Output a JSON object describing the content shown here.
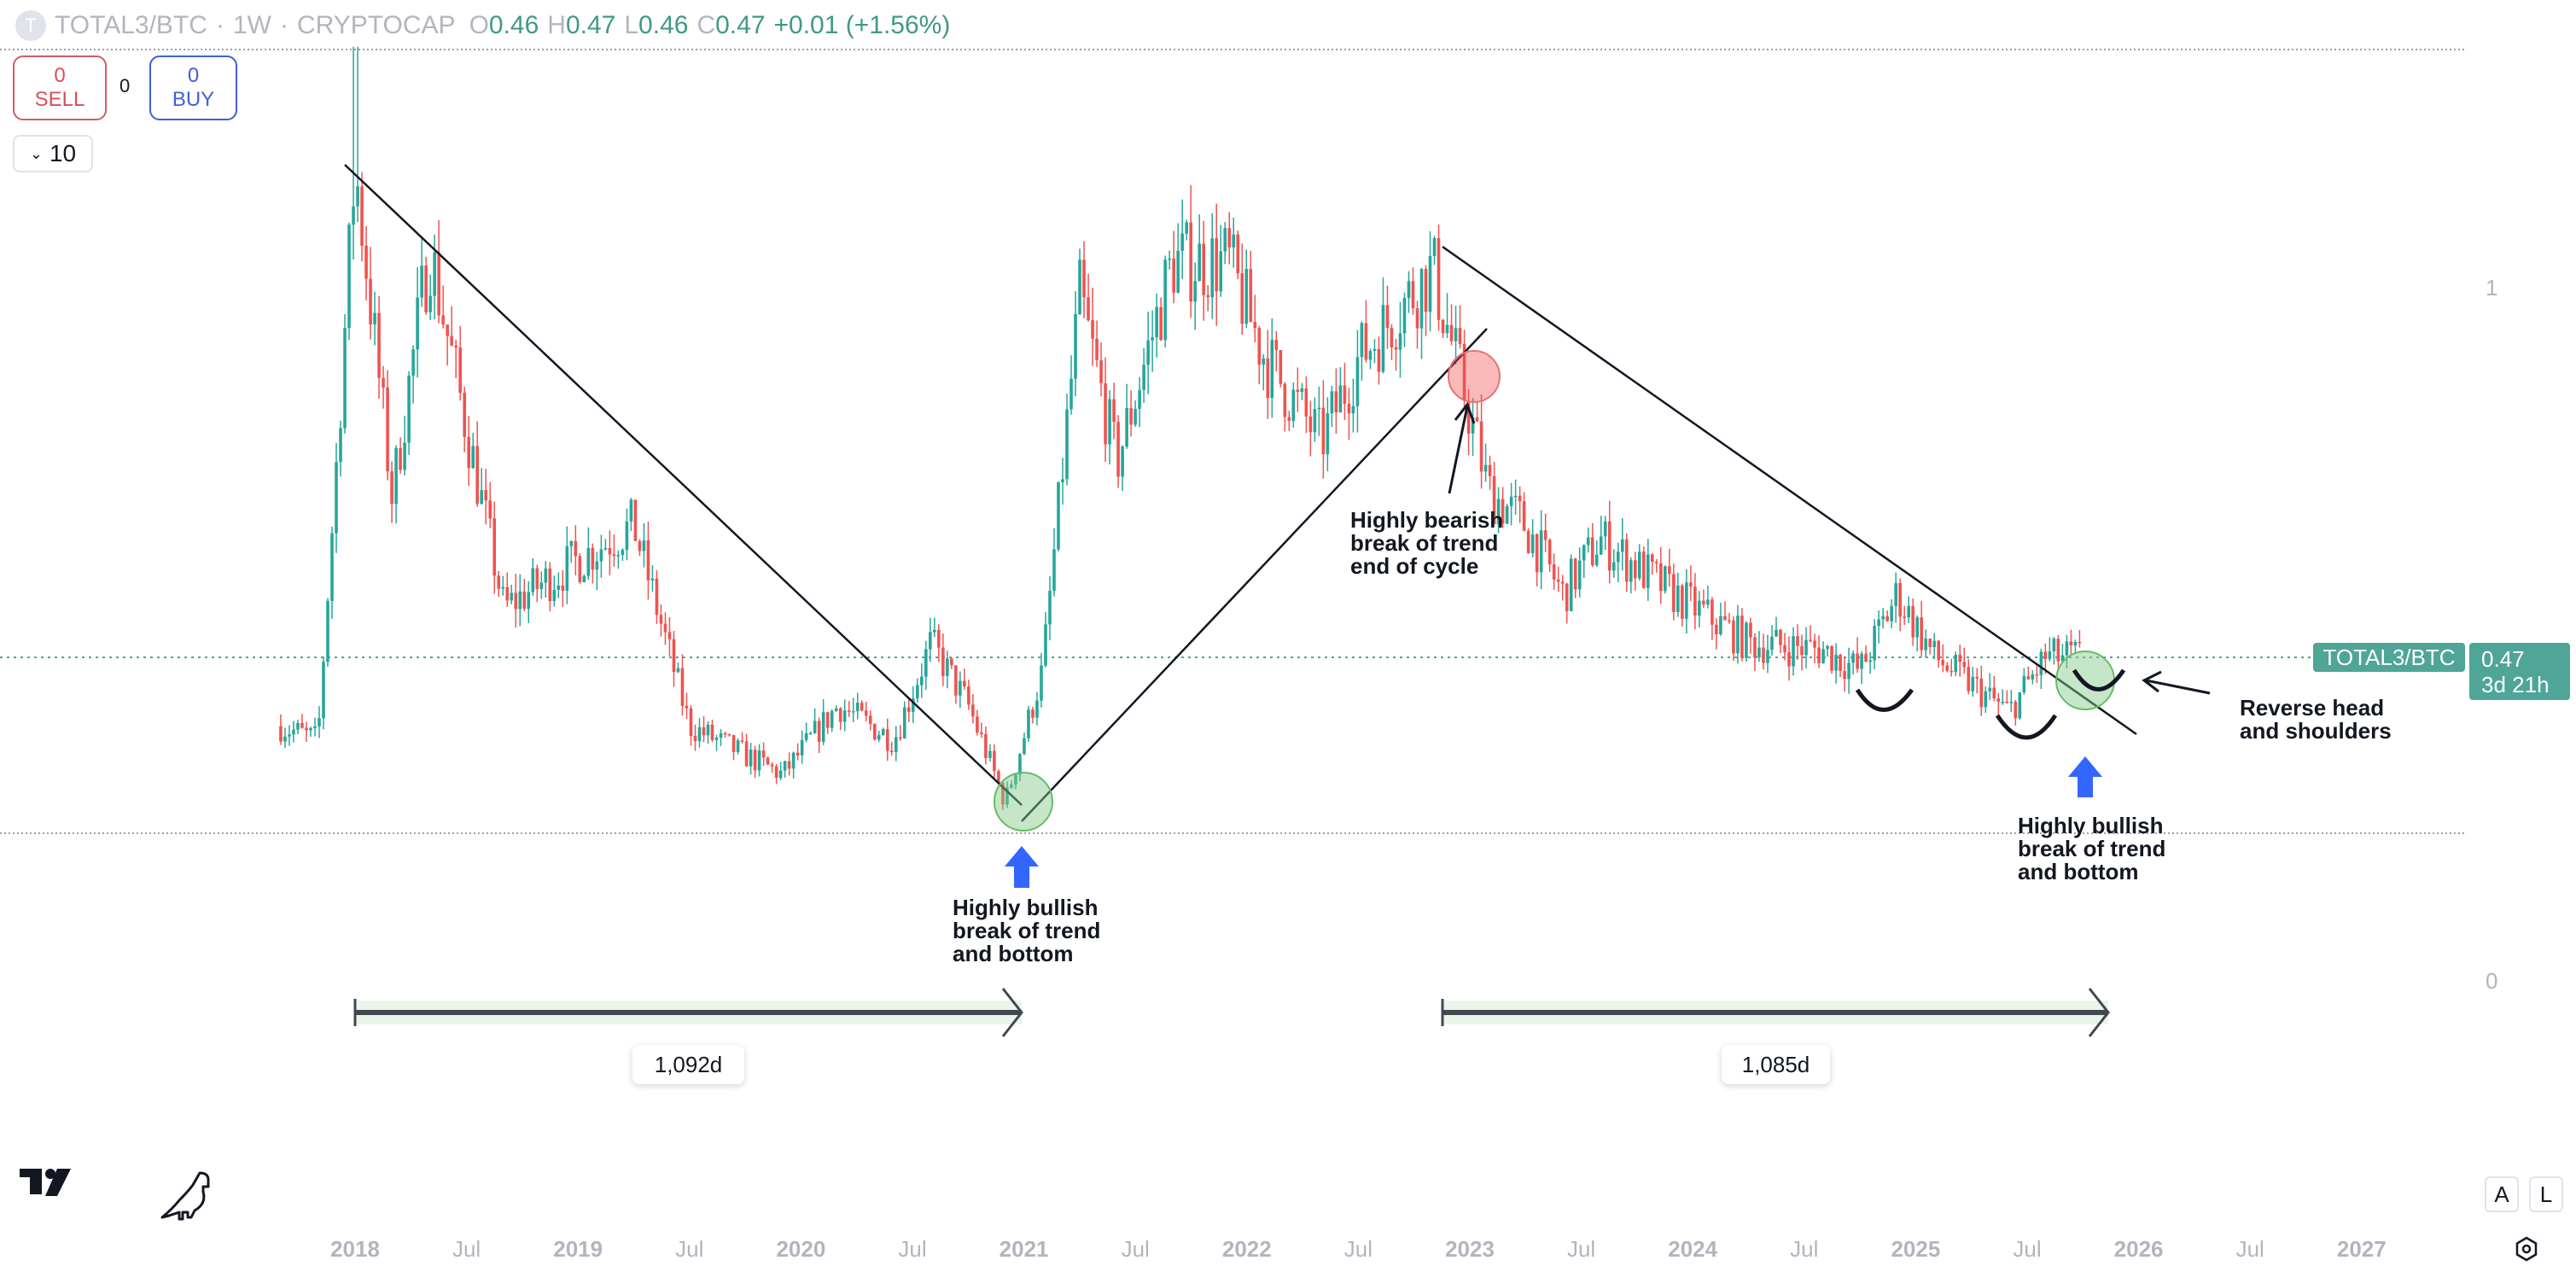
{
  "header": {
    "symbol_icon": "T",
    "symbol": "TOTAL3/BTC",
    "interval": "1W",
    "exchange": "CRYPTOCAP",
    "sep": "·",
    "open_key": "O",
    "open": "0.46",
    "high_key": "H",
    "high": "0.47",
    "low_key": "L",
    "low": "0.46",
    "close_key": "C",
    "close": "0.47",
    "change": "+0.01 (+1.56%)"
  },
  "trade": {
    "sell_price": "0",
    "sell_label": "SELL",
    "spread": "0",
    "buy_price": "0",
    "buy_label": "BUY",
    "quantity": "10",
    "quantity_icon": "chevron-down-icon"
  },
  "price_label": {
    "symbol": "TOTAL3/BTC",
    "value": "0.47",
    "countdown": "3d 21h"
  },
  "annotations": {
    "bullish1": [
      "Highly bullish",
      "break of trend",
      "and bottom"
    ],
    "bearish": [
      "Highly bearish",
      "break of trend",
      "end of cycle"
    ],
    "bullish2": [
      "Highly bullish",
      "break of trend",
      "and bottom"
    ],
    "rhs": [
      "Reverse head",
      "and shoulders"
    ],
    "range1": "1,092d",
    "range2": "1,085d"
  },
  "bottom": {
    "auto_label": "A",
    "log_label": "L"
  },
  "colors": {
    "up": "#26a69a",
    "down": "#ef5350",
    "accent": "#4fa596",
    "arrow": "#3366ff",
    "bull_circle": "#a5d6a7",
    "bear_circle": "#ef9a9a"
  },
  "chart_data": {
    "type": "candlestick",
    "title": "TOTAL3/BTC · 1W · CRYPTOCAP",
    "x_ticks": [
      "2018",
      "Jul",
      "2019",
      "Jul",
      "2020",
      "Jul",
      "2021",
      "Jul",
      "2022",
      "Jul",
      "2023",
      "Jul",
      "2024",
      "Jul",
      "2025",
      "Jul",
      "2026",
      "Jul",
      "2027"
    ],
    "y_ticks": [
      "0",
      "1"
    ],
    "ylim": [
      0,
      1.4
    ],
    "xlim": [
      "2017-08",
      "2027-03"
    ],
    "grid": false,
    "approx_close": {
      "x": [
        "2017-09",
        "2017-11",
        "2017-12",
        "2018-01",
        "2018-03",
        "2018-05",
        "2018-09",
        "2019-01",
        "2019-04",
        "2019-07",
        "2019-12",
        "2020-03",
        "2020-06",
        "2020-08",
        "2020-10",
        "2020-12",
        "2021-02",
        "2021-04",
        "2021-06",
        "2021-09",
        "2021-12",
        "2022-02",
        "2022-05",
        "2022-07",
        "2022-11",
        "2023-01",
        "2023-02",
        "2023-04",
        "2023-06",
        "2023-08",
        "2023-12",
        "2024-04",
        "2024-08",
        "2024-10",
        "2024-12",
        "2025-02",
        "2025-06",
        "2025-08",
        "2025-10"
      ],
      "values": [
        0.37,
        0.35,
        0.75,
        1.18,
        0.7,
        1.06,
        0.54,
        0.61,
        0.66,
        0.37,
        0.3,
        0.4,
        0.35,
        0.49,
        0.4,
        0.26,
        0.45,
        0.99,
        0.75,
        1.04,
        1.04,
        0.9,
        0.78,
        0.9,
        1.03,
        0.82,
        0.71,
        0.66,
        0.56,
        0.64,
        0.56,
        0.49,
        0.48,
        0.45,
        0.56,
        0.47,
        0.39,
        0.47,
        0.47
      ]
    },
    "peak_high": 1.35,
    "last_price": 0.47,
    "horizontal_levels": [
      1.35,
      0.47,
      0.21
    ],
    "trendlines": [
      {
        "from": [
          "2017-12",
          1.19
        ],
        "to": [
          "2020-12",
          0.26
        ]
      },
      {
        "from": [
          "2020-12",
          0.23
        ],
        "to": [
          "2023-02",
          0.94
        ]
      },
      {
        "from": [
          "2022-11",
          1.06
        ],
        "to": [
          "2025-12",
          0.36
        ]
      }
    ],
    "date_ranges": [
      {
        "from": "2018-01",
        "to": "2020-12",
        "label": "1,092d"
      },
      {
        "from": "2022-11",
        "to": "2025-10",
        "label": "1,085d"
      }
    ]
  }
}
